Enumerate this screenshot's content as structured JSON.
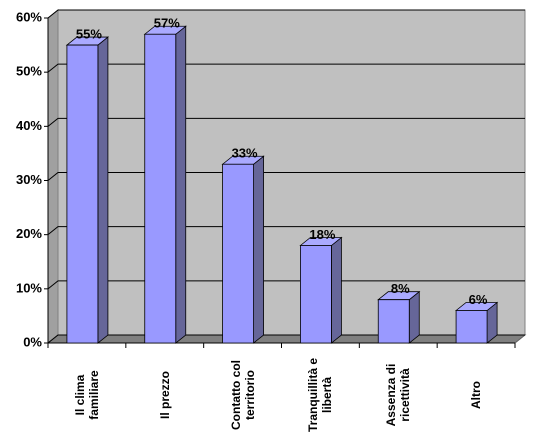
{
  "chart_data": {
    "type": "bar3d",
    "categories": [
      "Il clima familiare",
      "Il prezzo",
      "Contatto col territorio",
      "Tranquillità e libertà",
      "Assenza di ricettività",
      "Altro"
    ],
    "values": [
      55,
      57,
      33,
      18,
      8,
      6
    ],
    "value_labels": [
      "55%",
      "57%",
      "33%",
      "18%",
      "8%",
      "6%"
    ],
    "color": "#9999ff",
    "ylim": [
      0,
      60
    ],
    "yticks": [
      {
        "value": 0,
        "label": "0%"
      },
      {
        "value": 10,
        "label": "10%"
      },
      {
        "value": 20,
        "label": "20%"
      },
      {
        "value": 30,
        "label": "30%"
      },
      {
        "value": 40,
        "label": "40%"
      },
      {
        "value": 50,
        "label": "50%"
      },
      {
        "value": 60,
        "label": "60%"
      }
    ],
    "grid": true
  }
}
